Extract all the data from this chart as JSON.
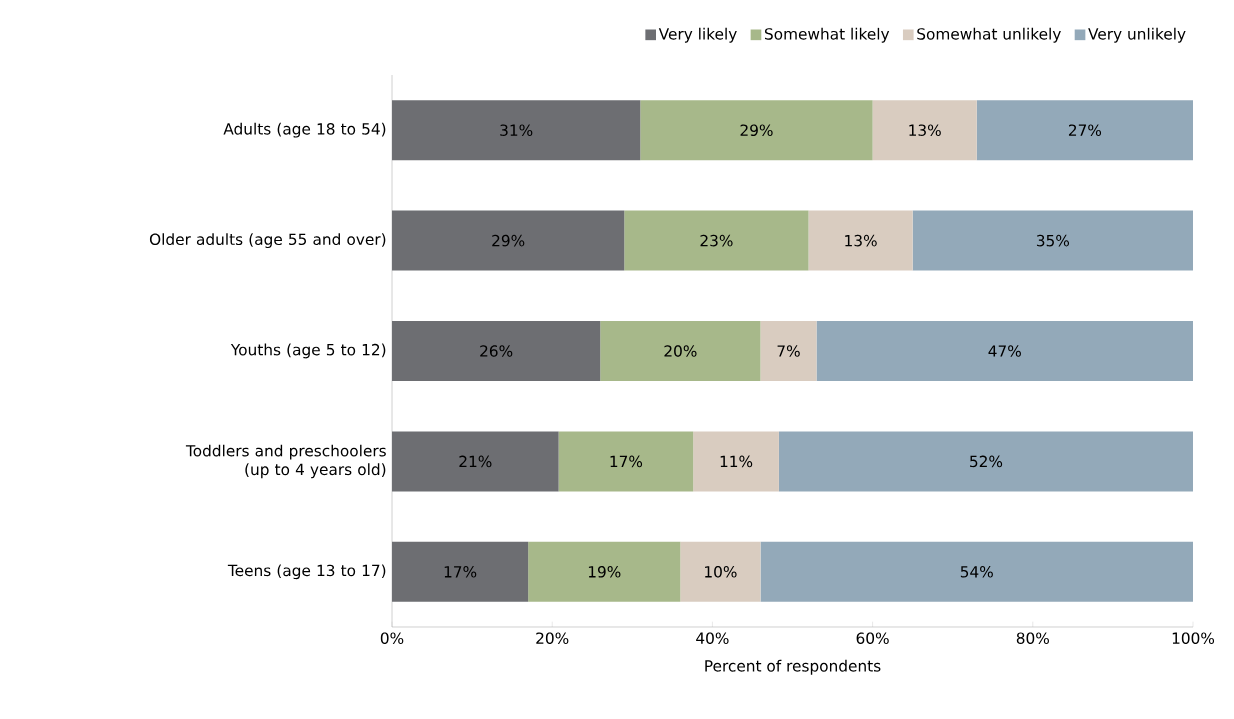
{
  "chart_data": {
    "type": "bar",
    "orientation": "horizontal",
    "stacked": true,
    "categories": [
      "Adults (age 18 to 54)",
      "Older adults (age 55 and over)",
      "Youths (age 5 to 12)",
      "Toddlers and preschoolers (up to 4 years old)",
      "Teens (age 13 to 17)"
    ],
    "series": [
      {
        "name": "Very likely",
        "color": "#6d6e72",
        "values": [
          31,
          29,
          26,
          20.8,
          17
        ],
        "value_labels": [
          "31%",
          "29%",
          "26%",
          "21%",
          "17%"
        ]
      },
      {
        "name": "Somewhat likely",
        "color": "#a7b88a",
        "values": [
          29,
          23,
          20,
          16.8,
          19
        ],
        "value_labels": [
          "29%",
          "23%",
          "20%",
          "17%",
          "19%"
        ]
      },
      {
        "name": "Somewhat unlikely",
        "color": "#d9ccc0",
        "values": [
          13,
          13,
          7,
          10.7,
          10
        ],
        "value_labels": [
          "13%",
          "13%",
          "7%",
          "11%",
          "10%"
        ]
      },
      {
        "name": "Very unlikely",
        "color": "#93a9b9",
        "values": [
          27,
          35,
          47,
          51.7,
          54
        ],
        "value_labels": [
          "27%",
          "35%",
          "47%",
          "52%",
          "54%"
        ]
      }
    ],
    "xlim": [
      0,
      100
    ],
    "xticks": [
      {
        "value": 0,
        "label": "0%"
      },
      {
        "value": 20,
        "label": "20%"
      },
      {
        "value": 40,
        "label": "40%"
      },
      {
        "value": 60,
        "label": "60%"
      },
      {
        "value": 80,
        "label": "80%"
      },
      {
        "value": 100,
        "label": "100%"
      }
    ],
    "xlabel": "Percent of respondents",
    "legend": "top right"
  }
}
